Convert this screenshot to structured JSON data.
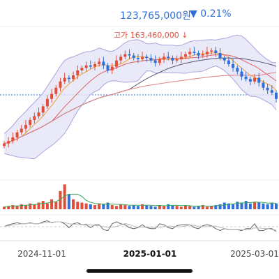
{
  "header": {
    "current_price": "123,765,000원",
    "change_label": "▼ 0.21%",
    "high_label": "고가 163,460,000 ↓"
  },
  "colors": {
    "up": "#e04e39",
    "down": "#2f6fd6",
    "band_fill": "#e5e3f6",
    "band_line": "#a8a4dc"
  },
  "chart_data": {
    "type": "line",
    "x_axis_ticks": [
      "2024-11-01",
      "2025-01-01",
      "2025-03-01"
    ],
    "annotations": [
      "고가 163,460,000"
    ],
    "close_series_approx": [
      88,
      90,
      93,
      97,
      100,
      103,
      107,
      110,
      113,
      118,
      124,
      128,
      133,
      138,
      141,
      140,
      143,
      147,
      149,
      151,
      150,
      152,
      154,
      151,
      147,
      150,
      155,
      158,
      160,
      159,
      157,
      156,
      158,
      157,
      155,
      153,
      156,
      158,
      157,
      155,
      156,
      158,
      160,
      162,
      161,
      159,
      160,
      162,
      163,
      161,
      157,
      155,
      152,
      149,
      146,
      142,
      140,
      138,
      141,
      137,
      133,
      131,
      129,
      124
    ],
    "volume_approx": [
      3,
      4,
      5,
      4,
      6,
      5,
      7,
      6,
      8,
      10,
      7,
      12,
      9,
      22,
      30,
      18,
      12,
      9,
      8,
      7,
      6,
      5,
      7,
      6,
      8,
      5,
      4,
      6,
      5,
      4,
      5,
      4,
      6,
      5,
      4,
      3,
      5,
      4,
      6,
      5,
      4,
      3,
      5,
      4,
      3,
      4,
      5,
      3,
      4,
      5,
      6,
      8,
      7,
      6,
      9,
      8,
      10,
      7,
      9,
      8,
      7,
      6,
      8,
      7
    ]
  }
}
